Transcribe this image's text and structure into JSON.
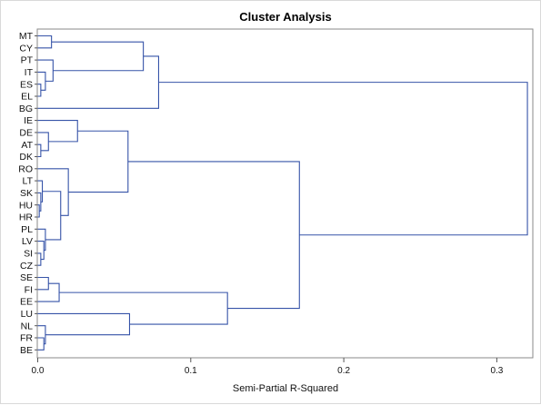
{
  "chart_data": {
    "type": "dendrogram",
    "title": "Cluster Analysis",
    "xlabel": "Semi-Partial R-Squared",
    "xlim": [
      0,
      0.33
    ],
    "xticks": [
      0.0,
      0.1,
      0.2,
      0.3
    ],
    "xtick_labels": [
      "0.0",
      "0.1",
      "0.2",
      "0.3"
    ],
    "leaves": [
      "MT",
      "CY",
      "PT",
      "IT",
      "ES",
      "EL",
      "BG",
      "IE",
      "DE",
      "AT",
      "DK",
      "RO",
      "LT",
      "SK",
      "HU",
      "HR",
      "PL",
      "LV",
      "SI",
      "CZ",
      "SE",
      "FI",
      "EE",
      "LU",
      "NL",
      "FR",
      "BE"
    ],
    "merges": [
      {
        "a": "ES",
        "b": "EL",
        "height": 0.002
      },
      {
        "a": "IT",
        "b": "ES-EL",
        "height": 0.005
      },
      {
        "a": "PT",
        "b": "IT-ES-EL",
        "height": 0.01
      },
      {
        "a": "MT",
        "b": "CY",
        "height": 0.009
      },
      {
        "a": "MT-CY",
        "b": "PT-IT-ES-EL",
        "height": 0.069
      },
      {
        "a": "MT-CY-PT-IT-ES-EL",
        "b": "BG",
        "height": 0.079
      },
      {
        "a": "AT",
        "b": "DK",
        "height": 0.002
      },
      {
        "a": "DE",
        "b": "AT-DK",
        "height": 0.007
      },
      {
        "a": "IE",
        "b": "DE-AT-DK",
        "height": 0.026
      },
      {
        "a": "HU",
        "b": "HR",
        "height": 0.001
      },
      {
        "a": "SK",
        "b": "HU-HR",
        "height": 0.002
      },
      {
        "a": "LT",
        "b": "SK-HU-HR",
        "height": 0.003
      },
      {
        "a": "SI",
        "b": "CZ",
        "height": 0.002
      },
      {
        "a": "LV",
        "b": "SI-CZ",
        "height": 0.004
      },
      {
        "a": "PL",
        "b": "LV-SI-CZ",
        "height": 0.005
      },
      {
        "a": "LT-SK-HU-HR",
        "b": "PL-LV-SI-CZ",
        "height": 0.015
      },
      {
        "a": "RO",
        "b": "LT-SK-HU-HR-PL-LV-SI-CZ",
        "height": 0.02
      },
      {
        "a": "IE-DE-AT-DK",
        "b": "RO-LT-SK-HU-HR-PL-LV-SI-CZ",
        "height": 0.059
      },
      {
        "a": "SE",
        "b": "FI",
        "height": 0.007
      },
      {
        "a": "SE-FI",
        "b": "EE",
        "height": 0.014
      },
      {
        "a": "FR",
        "b": "BE",
        "height": 0.004
      },
      {
        "a": "NL",
        "b": "FR-BE",
        "height": 0.005
      },
      {
        "a": "LU",
        "b": "NL-FR-BE",
        "height": 0.06
      },
      {
        "a": "SE-FI-EE",
        "b": "LU-NL-FR-BE",
        "height": 0.124
      },
      {
        "a": "IE-DE-AT-DK-RO-LT-SK-HU-HR-PL-LV-SI-CZ",
        "b": "SE-FI-EE-LU-NL-FR-BE",
        "height": 0.171
      },
      {
        "a": "MT-CY-PT-IT-ES-EL-BG",
        "b": "IE-DE-AT-DK-RO-LT-SK-HU-HR-PL-LV-SI-CZ-SE-FI-EE-LU-NL-FR-BE",
        "height": 0.32
      }
    ],
    "line_color": "#3653a8",
    "grid": false,
    "legend": "none"
  }
}
